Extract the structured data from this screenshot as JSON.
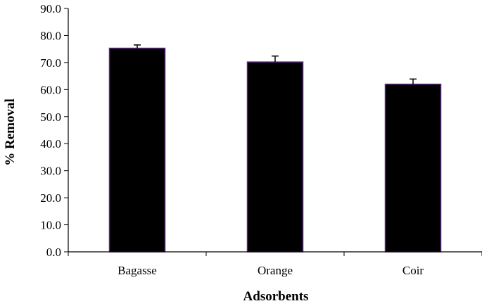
{
  "chart_data": {
    "type": "bar",
    "title": "",
    "xlabel": "Adsorbents",
    "ylabel": "% Removal",
    "categories": [
      "Bagasse",
      "Orange",
      "Coir"
    ],
    "values": [
      75.3,
      70.2,
      62.0
    ],
    "errors": [
      1.2,
      2.2,
      1.9
    ],
    "ylim": [
      0,
      90
    ],
    "yticks": [
      "0.0",
      "10.0",
      "20.0",
      "30.0",
      "40.0",
      "50.0",
      "60.0",
      "70.0",
      "80.0",
      "90.0"
    ],
    "grid": false,
    "legend": "none",
    "colors": {
      "bar_fill": "#000000",
      "bar_edge": "#5a2a82",
      "axis": "#000000"
    }
  }
}
